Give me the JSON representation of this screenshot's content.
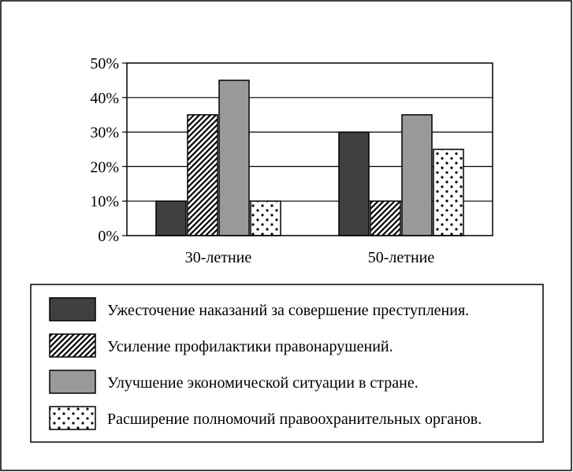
{
  "chart_data": {
    "type": "bar",
    "categories": [
      "30-летние",
      "50-летние"
    ],
    "series": [
      {
        "name": "Ужесточение наказаний за совершение преступления.",
        "values": [
          10,
          30
        ],
        "fill": "dark"
      },
      {
        "name": "Усиление профилактики правонарушений.",
        "values": [
          35,
          10
        ],
        "fill": "hatch"
      },
      {
        "name": "Улучшение экономической ситуации в стране.",
        "values": [
          45,
          35
        ],
        "fill": "gray"
      },
      {
        "name": "Расширение полномочий правоохранительных органов.",
        "values": [
          10,
          25
        ],
        "fill": "dots"
      }
    ],
    "y_ticks": [
      "0%",
      "10%",
      "20%",
      "30%",
      "40%",
      "50%"
    ],
    "ylim": [
      0,
      50
    ],
    "grid": true,
    "legend_placement": "bottom",
    "colors": {
      "dark": "#404040",
      "gray": "#999999",
      "outline": "#000000"
    }
  }
}
